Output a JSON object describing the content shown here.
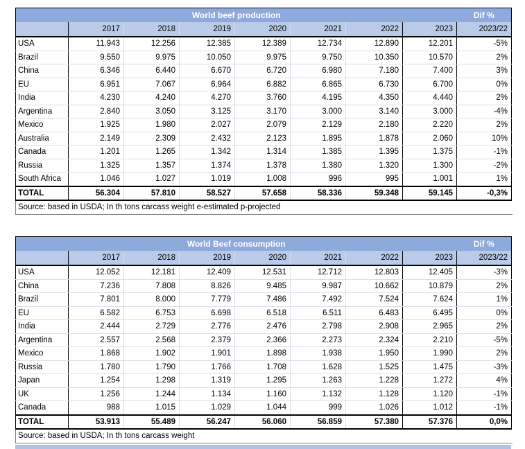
{
  "colors": {
    "title_bg": "#8EA9DB",
    "header_bg": "#B9CBE8",
    "title_text": "#FFFFFF",
    "bottom_bar": "#AEC2E4"
  },
  "tables": [
    {
      "title": "World beef production",
      "dif_label": "Dif %",
      "years": [
        "2017",
        "2018",
        "2019",
        "2020",
        "2021",
        "2022",
        "2023"
      ],
      "dif_col": "2023/22",
      "rows": [
        {
          "country": "USA",
          "values": [
            "11.943",
            "12.256",
            "12.385",
            "12.389",
            "12.734",
            "12.890",
            "12.201"
          ],
          "dif": "-5%"
        },
        {
          "country": "Brazil",
          "values": [
            "9.550",
            "9.975",
            "10.050",
            "9.975",
            "9.750",
            "10.350",
            "10.570"
          ],
          "dif": "2%"
        },
        {
          "country": "China",
          "values": [
            "6.346",
            "6.440",
            "6.670",
            "6.720",
            "6.980",
            "7.180",
            "7.400"
          ],
          "dif": "3%"
        },
        {
          "country": "EU",
          "values": [
            "6.951",
            "7.067",
            "6.964",
            "6.882",
            "6.865",
            "6.730",
            "6.700"
          ],
          "dif": "0%"
        },
        {
          "country": "India",
          "values": [
            "4.230",
            "4.240",
            "4.270",
            "3.760",
            "4.195",
            "4.350",
            "4.440"
          ],
          "dif": "2%"
        },
        {
          "country": "Argentina",
          "values": [
            "2.840",
            "3.050",
            "3.125",
            "3.170",
            "3.000",
            "3.140",
            "3.000"
          ],
          "dif": "-4%"
        },
        {
          "country": "Mexico",
          "values": [
            "1.925",
            "1.980",
            "2.027",
            "2.079",
            "2.129",
            "2.180",
            "2.220"
          ],
          "dif": "2%"
        },
        {
          "country": "Australia",
          "values": [
            "2.149",
            "2.309",
            "2.432",
            "2.123",
            "1.895",
            "1.878",
            "2.060"
          ],
          "dif": "10%"
        },
        {
          "country": "Canada",
          "values": [
            "1.201",
            "1.265",
            "1.342",
            "1.314",
            "1.385",
            "1.395",
            "1.375"
          ],
          "dif": "-1%"
        },
        {
          "country": "Russia",
          "values": [
            "1.325",
            "1.357",
            "1.374",
            "1.378",
            "1.380",
            "1.320",
            "1.300"
          ],
          "dif": "-2%"
        },
        {
          "country": "South Africa",
          "values": [
            "1.046",
            "1.027",
            "1.019",
            "1.008",
            "996",
            "995",
            "1.001"
          ],
          "dif": "1%"
        }
      ],
      "total": {
        "label": "TOTAL",
        "values": [
          "56.304",
          "57.810",
          "58.527",
          "57.658",
          "58.336",
          "59.348",
          "59.145"
        ],
        "dif": "-0,3%"
      },
      "source": "Source: based in USDA; In th tons carcass weight e-estimated p-projected"
    },
    {
      "title": "World Beef consumption",
      "dif_label": "Dif %",
      "years": [
        "2017",
        "2018",
        "2019",
        "2020",
        "2021",
        "2022",
        "2023"
      ],
      "dif_col": "2023/22",
      "rows": [
        {
          "country": "USA",
          "values": [
            "12.052",
            "12.181",
            "12.409",
            "12.531",
            "12.712",
            "12.803",
            "12.405"
          ],
          "dif": "-3%"
        },
        {
          "country": "China",
          "values": [
            "7.236",
            "7.808",
            "8.826",
            "9.485",
            "9.987",
            "10.662",
            "10.879"
          ],
          "dif": "2%"
        },
        {
          "country": "Brazil",
          "values": [
            "7.801",
            "8.000",
            "7.779",
            "7.486",
            "7.492",
            "7.524",
            "7.624"
          ],
          "dif": "1%"
        },
        {
          "country": "EU",
          "values": [
            "6.582",
            "6.753",
            "6.698",
            "6.518",
            "6.511",
            "6.483",
            "6.495"
          ],
          "dif": "0%"
        },
        {
          "country": "India",
          "values": [
            "2.444",
            "2.729",
            "2.776",
            "2.476",
            "2.798",
            "2.908",
            "2.965"
          ],
          "dif": "2%"
        },
        {
          "country": "Argentina",
          "values": [
            "2.557",
            "2.568",
            "2.379",
            "2.366",
            "2.273",
            "2.324",
            "2.210"
          ],
          "dif": "-5%"
        },
        {
          "country": "Mexico",
          "values": [
            "1.868",
            "1.902",
            "1.901",
            "1.898",
            "1.938",
            "1.950",
            "1.990"
          ],
          "dif": "2%"
        },
        {
          "country": "Russia",
          "values": [
            "1.780",
            "1.790",
            "1.766",
            "1.708",
            "1.628",
            "1.525",
            "1.475"
          ],
          "dif": "-3%"
        },
        {
          "country": "Japan",
          "values": [
            "1.254",
            "1.298",
            "1.319",
            "1.295",
            "1.263",
            "1.228",
            "1.272"
          ],
          "dif": "4%"
        },
        {
          "country": "UK",
          "values": [
            "1.256",
            "1.244",
            "1.134",
            "1.160",
            "1.132",
            "1.128",
            "1.120"
          ],
          "dif": "-1%"
        },
        {
          "country": "Canada",
          "values": [
            "988",
            "1.015",
            "1.029",
            "1.044",
            "999",
            "1.026",
            "1.012"
          ],
          "dif": "-1%"
        }
      ],
      "total": {
        "label": "TOTAL",
        "values": [
          "53.913",
          "55.489",
          "56.247",
          "56.060",
          "56.859",
          "57.380",
          "57.376"
        ],
        "dif": "0,0%"
      },
      "source": "Source: based in USDA; In th tons carcass weight"
    }
  ]
}
